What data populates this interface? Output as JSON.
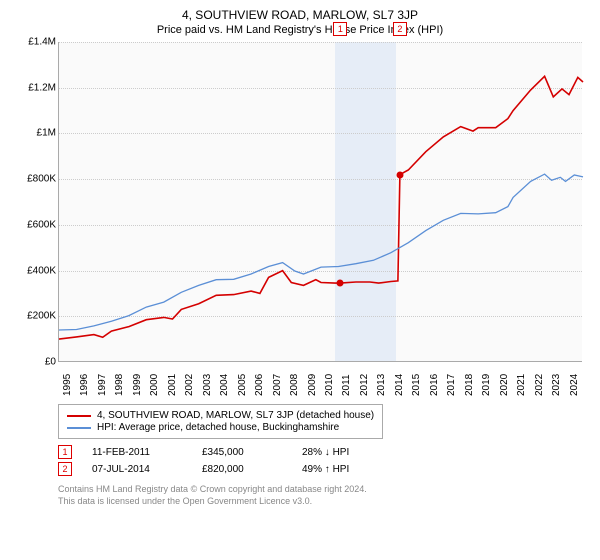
{
  "title": "4, SOUTHVIEW ROAD, MARLOW, SL7 3JP",
  "subtitle": "Price paid vs. HM Land Registry's House Price Index (HPI)",
  "chart": {
    "type": "line",
    "background_color": "#fafafa",
    "grid_color": "#cccccc",
    "shade_color": "#e6edf7",
    "ylim": [
      0,
      1400000
    ],
    "ytick_step": 200000,
    "yticks": [
      "£0",
      "£200K",
      "£400K",
      "£600K",
      "£800K",
      "£1M",
      "£1.2M",
      "£1.4M"
    ],
    "xlim": [
      1995,
      2025
    ],
    "xticks": [
      1995,
      1996,
      1997,
      1998,
      1999,
      2000,
      2001,
      2002,
      2003,
      2004,
      2005,
      2006,
      2007,
      2008,
      2009,
      2010,
      2011,
      2012,
      2013,
      2014,
      2015,
      2016,
      2017,
      2018,
      2019,
      2020,
      2021,
      2022,
      2023,
      2024
    ],
    "shade_x": [
      2010.8,
      2014.3
    ],
    "series": [
      {
        "name": "price_paid",
        "label": "4, SOUTHVIEW ROAD, MARLOW, SL7 3JP (detached house)",
        "color": "#d40000",
        "line_width": 1.6,
        "points": [
          [
            1995,
            100000
          ],
          [
            1996,
            110000
          ],
          [
            1997,
            120000
          ],
          [
            1997.5,
            108000
          ],
          [
            1998,
            135000
          ],
          [
            1999,
            155000
          ],
          [
            2000,
            185000
          ],
          [
            2001,
            195000
          ],
          [
            2001.5,
            188000
          ],
          [
            2002,
            230000
          ],
          [
            2003,
            255000
          ],
          [
            2004,
            292000
          ],
          [
            2005,
            295000
          ],
          [
            2006,
            310000
          ],
          [
            2006.5,
            300000
          ],
          [
            2007,
            370000
          ],
          [
            2007.8,
            400000
          ],
          [
            2008.3,
            348000
          ],
          [
            2009,
            335000
          ],
          [
            2009.7,
            360000
          ],
          [
            2010,
            348000
          ],
          [
            2010.8,
            345000
          ],
          [
            2011.11,
            345000
          ],
          [
            2012,
            350000
          ],
          [
            2012.8,
            350000
          ],
          [
            2013.3,
            345000
          ],
          [
            2014,
            352000
          ],
          [
            2014.4,
            355000
          ],
          [
            2014.52,
            820000
          ],
          [
            2015,
            840000
          ],
          [
            2016,
            920000
          ],
          [
            2017,
            985000
          ],
          [
            2018,
            1030000
          ],
          [
            2018.7,
            1010000
          ],
          [
            2019,
            1025000
          ],
          [
            2020,
            1025000
          ],
          [
            2020.7,
            1065000
          ],
          [
            2021,
            1100000
          ],
          [
            2022,
            1190000
          ],
          [
            2022.8,
            1250000
          ],
          [
            2023.3,
            1160000
          ],
          [
            2023.8,
            1195000
          ],
          [
            2024.2,
            1170000
          ],
          [
            2024.7,
            1245000
          ],
          [
            2025,
            1225000
          ]
        ]
      },
      {
        "name": "hpi",
        "label": "HPI: Average price, detached house, Buckinghamshire",
        "color": "#5b8fd6",
        "line_width": 1.3,
        "points": [
          [
            1995,
            140000
          ],
          [
            1996,
            142000
          ],
          [
            1997,
            158000
          ],
          [
            1998,
            178000
          ],
          [
            1999,
            203000
          ],
          [
            2000,
            240000
          ],
          [
            2001,
            262000
          ],
          [
            2002,
            305000
          ],
          [
            2003,
            335000
          ],
          [
            2004,
            360000
          ],
          [
            2005,
            362000
          ],
          [
            2006,
            385000
          ],
          [
            2007,
            418000
          ],
          [
            2007.8,
            435000
          ],
          [
            2008.5,
            398000
          ],
          [
            2009,
            385000
          ],
          [
            2010,
            415000
          ],
          [
            2011,
            418000
          ],
          [
            2012,
            430000
          ],
          [
            2013,
            445000
          ],
          [
            2014,
            478000
          ],
          [
            2015,
            522000
          ],
          [
            2016,
            575000
          ],
          [
            2017,
            620000
          ],
          [
            2018,
            650000
          ],
          [
            2019,
            648000
          ],
          [
            2020,
            653000
          ],
          [
            2020.7,
            680000
          ],
          [
            2021,
            720000
          ],
          [
            2022,
            790000
          ],
          [
            2022.8,
            822000
          ],
          [
            2023.2,
            795000
          ],
          [
            2023.7,
            808000
          ],
          [
            2024,
            790000
          ],
          [
            2024.5,
            818000
          ],
          [
            2025,
            810000
          ]
        ]
      }
    ],
    "sale_markers": [
      {
        "num": "1",
        "x": 2011.11,
        "y": 345000
      },
      {
        "num": "2",
        "x": 2014.52,
        "y": 820000
      }
    ]
  },
  "legend": {
    "items": [
      {
        "label": "4, SOUTHVIEW ROAD, MARLOW, SL7 3JP (detached house)",
        "color": "#d40000"
      },
      {
        "label": "HPI: Average price, detached house, Buckinghamshire",
        "color": "#5b8fd6"
      }
    ]
  },
  "sales": [
    {
      "num": "1",
      "date": "11-FEB-2011",
      "price": "£345,000",
      "delta": "28% ↓ HPI"
    },
    {
      "num": "2",
      "date": "07-JUL-2014",
      "price": "£820,000",
      "delta": "49% ↑ HPI"
    }
  ],
  "footer": {
    "line1": "Contains HM Land Registry data © Crown copyright and database right 2024.",
    "line2": "This data is licensed under the Open Government Licence v3.0."
  }
}
